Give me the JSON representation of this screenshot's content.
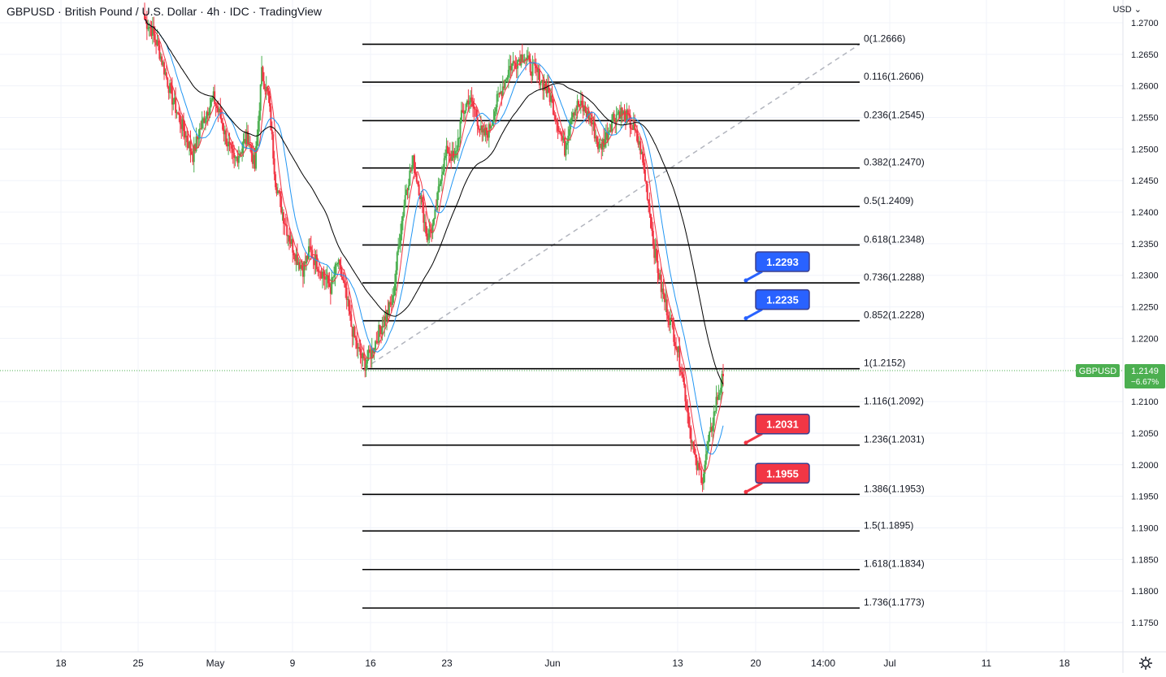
{
  "header": {
    "title": "GBPUSD · British Pound / U.S. Dollar · 4h · IDC · TradingView",
    "currency": "USD"
  },
  "price_badge": {
    "symbol": "GBPUSD",
    "price": "1.2149",
    "change": "−6.67%",
    "color": "#4caf50"
  },
  "chart_data": {
    "type": "candlestick",
    "price_axis": {
      "min": 1.17,
      "max": 1.27,
      "ticks": [
        "1.2700",
        "1.2650",
        "1.2600",
        "1.2550",
        "1.2500",
        "1.2450",
        "1.2400",
        "1.2350",
        "1.2300",
        "1.2250",
        "1.2200",
        "1.2100",
        "1.2050",
        "1.2000",
        "1.1950",
        "1.1900",
        "1.1850",
        "1.1800",
        "1.1750"
      ]
    },
    "time_axis": {
      "labels": [
        "18",
        "25",
        "May",
        "9",
        "16",
        "23",
        "Jun",
        "13",
        "20",
        "14:00",
        "Jul",
        "11",
        "18"
      ]
    },
    "fib_levels": [
      {
        "ratio": "0",
        "price": 1.2666,
        "label": "0(1.2666)"
      },
      {
        "ratio": "0.116",
        "price": 1.2606,
        "label": "0.116(1.2606)"
      },
      {
        "ratio": "0.236",
        "price": 1.2545,
        "label": "0.236(1.2545)"
      },
      {
        "ratio": "0.382",
        "price": 1.247,
        "label": "0.382(1.2470)"
      },
      {
        "ratio": "0.5",
        "price": 1.2409,
        "label": "0.5(1.2409)"
      },
      {
        "ratio": "0.618",
        "price": 1.2348,
        "label": "0.618(1.2348)"
      },
      {
        "ratio": "0.736",
        "price": 1.2288,
        "label": "0.736(1.2288)"
      },
      {
        "ratio": "0.852",
        "price": 1.2228,
        "label": "0.852(1.2228)"
      },
      {
        "ratio": "1",
        "price": 1.2152,
        "label": "1(1.2152)"
      },
      {
        "ratio": "1.116",
        "price": 1.2092,
        "label": "1.116(1.2092)"
      },
      {
        "ratio": "1.236",
        "price": 1.2031,
        "label": "1.236(1.2031)"
      },
      {
        "ratio": "1.386",
        "price": 1.1953,
        "label": "1.386(1.1953)"
      },
      {
        "ratio": "1.5",
        "price": 1.1895,
        "label": "1.5(1.1895)"
      },
      {
        "ratio": "1.618",
        "price": 1.1834,
        "label": "1.618(1.1834)"
      },
      {
        "ratio": "1.736",
        "price": 1.1773,
        "label": "1.736(1.1773)"
      }
    ],
    "callouts": [
      {
        "text": "1.2293",
        "price": 1.2288,
        "color": "#2962ff"
      },
      {
        "text": "1.2235",
        "price": 1.2228,
        "color": "#2962ff"
      },
      {
        "text": "1.2031",
        "price": 1.2031,
        "color": "#f23645"
      },
      {
        "text": "1.1955",
        "price": 1.1953,
        "color": "#f23645"
      }
    ],
    "trendline": {
      "from": 1.2152,
      "to": 1.2666,
      "style": "dashed"
    },
    "current_price": 1.2149,
    "colors": {
      "up": "#4caf50",
      "down": "#f23645",
      "ma_fast": "#f23645",
      "ma_mid": "#2196f3",
      "ma_slow": "#000000",
      "fib": "#000000",
      "grid": "#f0f3fa"
    },
    "series": [
      {
        "name": "price-path",
        "values": [
          1.2705,
          1.269,
          1.266,
          1.262,
          1.258,
          1.255,
          1.252,
          1.249,
          1.253,
          1.256,
          1.258,
          1.255,
          1.251,
          1.248,
          1.25,
          1.252,
          1.247,
          1.262,
          1.258,
          1.245,
          1.24,
          1.236,
          1.233,
          1.231,
          1.234,
          1.232,
          1.23,
          1.228,
          1.232,
          1.228,
          1.222,
          1.218,
          1.216,
          1.218,
          1.221,
          1.2235,
          1.226,
          1.236,
          1.244,
          1.248,
          1.243,
          1.236,
          1.238,
          1.246,
          1.25,
          1.248,
          1.255,
          1.258,
          1.256,
          1.252,
          1.253,
          1.257,
          1.26,
          1.263,
          1.264,
          1.265,
          1.263,
          1.262,
          1.26,
          1.258,
          1.254,
          1.25,
          1.256,
          1.257,
          1.256,
          1.254,
          1.25,
          1.252,
          1.255,
          1.256,
          1.255,
          1.253,
          1.25,
          1.243,
          1.234,
          1.228,
          1.224,
          1.22,
          1.215,
          1.207,
          1.2,
          1.198,
          1.204,
          1.21,
          1.214
        ]
      }
    ]
  }
}
